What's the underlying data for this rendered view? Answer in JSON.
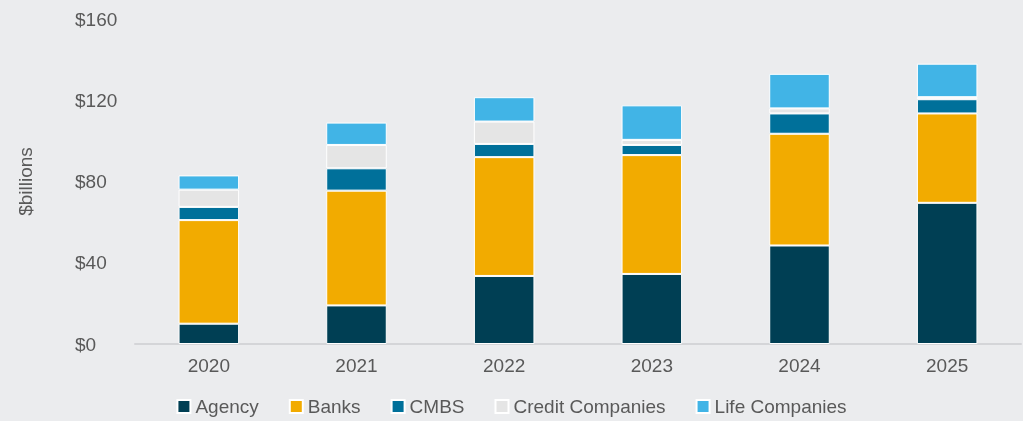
{
  "chart_data": {
    "type": "bar",
    "stacked": true,
    "ylabel": "$billions",
    "categories": [
      "2020",
      "2021",
      "2022",
      "2023",
      "2024",
      "2025"
    ],
    "series": [
      {
        "name": "Agency",
        "color": "#003f54",
        "values": [
          10,
          19,
          33.5,
          34.5,
          48.5,
          69.5
        ]
      },
      {
        "name": "Banks",
        "color": "#f2ab00",
        "values": [
          51,
          56.5,
          58.5,
          58.5,
          55,
          44
        ]
      },
      {
        "name": "CMBS",
        "color": "#00709a",
        "values": [
          6.5,
          11,
          6.5,
          5,
          10,
          7
        ]
      },
      {
        "name": "Credit Companies",
        "color": "#e5e5e5",
        "values": [
          8.5,
          11.5,
          11,
          2.5,
          2.5,
          1
        ]
      },
      {
        "name": "Life Companies",
        "color": "#41b4e6",
        "values": [
          7,
          11,
          12,
          17,
          17,
          16.5
        ]
      }
    ],
    "ylim": [
      0,
      160
    ],
    "yticks": [
      {
        "value": 0,
        "label": "$0"
      },
      {
        "value": 40,
        "label": "$40"
      },
      {
        "value": 80,
        "label": "$80"
      },
      {
        "value": 120,
        "label": "$120"
      },
      {
        "value": 160,
        "label": "$160"
      }
    ],
    "grid": false,
    "legend": "bottom"
  }
}
